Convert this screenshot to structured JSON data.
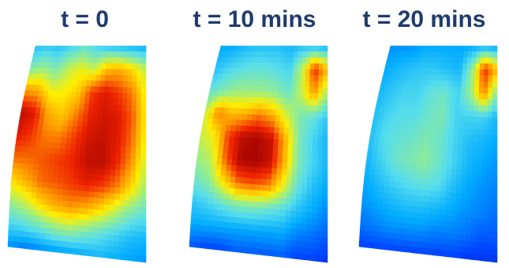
{
  "colors": {
    "title": "#1f3b6e",
    "colormap": [
      "#0000aa",
      "#0044ff",
      "#00aaff",
      "#55ddee",
      "#99ee88",
      "#ffee00",
      "#ff9900",
      "#ee2200",
      "#990000"
    ]
  },
  "panels": [
    {
      "title": "t = 0",
      "grid": [
        [
          0.3,
          0.32,
          0.3,
          0.35,
          0.4,
          0.35,
          0.3,
          0.28,
          0.26,
          0.25
        ],
        [
          0.45,
          0.5,
          0.45,
          0.55,
          0.6,
          0.55,
          0.7,
          0.72,
          0.65,
          0.55
        ],
        [
          0.75,
          0.72,
          0.6,
          0.62,
          0.68,
          0.85,
          0.9,
          0.85,
          0.78,
          0.6
        ],
        [
          0.95,
          0.9,
          0.72,
          0.68,
          0.78,
          0.88,
          0.92,
          0.9,
          0.82,
          0.62
        ],
        [
          0.9,
          0.85,
          0.78,
          0.78,
          0.85,
          0.92,
          0.94,
          0.9,
          0.8,
          0.6
        ],
        [
          0.8,
          0.8,
          0.82,
          0.85,
          0.88,
          0.94,
          0.95,
          0.88,
          0.75,
          0.55
        ],
        [
          0.65,
          0.72,
          0.8,
          0.82,
          0.85,
          0.88,
          0.85,
          0.78,
          0.65,
          0.5
        ],
        [
          0.5,
          0.55,
          0.65,
          0.72,
          0.75,
          0.72,
          0.65,
          0.55,
          0.45,
          0.4
        ],
        [
          0.35,
          0.38,
          0.42,
          0.48,
          0.5,
          0.45,
          0.4,
          0.35,
          0.3,
          0.28
        ],
        [
          0.22,
          0.18,
          0.2,
          0.22,
          0.24,
          0.26,
          0.28,
          0.26,
          0.24,
          0.22
        ]
      ]
    },
    {
      "title": "t = 10 mins",
      "grid": [
        [
          0.25,
          0.25,
          0.28,
          0.3,
          0.3,
          0.3,
          0.28,
          0.3,
          0.28,
          0.25
        ],
        [
          0.3,
          0.35,
          0.38,
          0.4,
          0.4,
          0.38,
          0.35,
          0.55,
          0.88,
          0.7
        ],
        [
          0.4,
          0.45,
          0.5,
          0.5,
          0.5,
          0.48,
          0.42,
          0.55,
          0.75,
          0.5
        ],
        [
          0.55,
          0.78,
          0.7,
          0.72,
          0.78,
          0.72,
          0.58,
          0.45,
          0.4,
          0.32
        ],
        [
          0.55,
          0.62,
          0.85,
          0.95,
          0.97,
          0.93,
          0.72,
          0.45,
          0.35,
          0.28
        ],
        [
          0.5,
          0.55,
          0.82,
          0.97,
          0.98,
          0.94,
          0.72,
          0.45,
          0.35,
          0.28
        ],
        [
          0.42,
          0.48,
          0.65,
          0.8,
          0.82,
          0.78,
          0.6,
          0.4,
          0.3,
          0.25
        ],
        [
          0.32,
          0.35,
          0.4,
          0.45,
          0.45,
          0.42,
          0.38,
          0.3,
          0.25,
          0.2
        ],
        [
          0.25,
          0.25,
          0.25,
          0.25,
          0.25,
          0.25,
          0.25,
          0.2,
          0.18,
          0.15
        ],
        [
          0.15,
          0.12,
          0.12,
          0.15,
          0.15,
          0.15,
          0.15,
          0.12,
          0.12,
          0.1
        ]
      ]
    },
    {
      "title": "t = 20 mins",
      "grid": [
        [
          0.22,
          0.22,
          0.22,
          0.25,
          0.25,
          0.25,
          0.25,
          0.25,
          0.25,
          0.22
        ],
        [
          0.25,
          0.28,
          0.3,
          0.32,
          0.32,
          0.3,
          0.28,
          0.48,
          0.88,
          0.7
        ],
        [
          0.28,
          0.32,
          0.35,
          0.35,
          0.4,
          0.42,
          0.35,
          0.5,
          0.78,
          0.45
        ],
        [
          0.3,
          0.35,
          0.38,
          0.38,
          0.42,
          0.45,
          0.35,
          0.35,
          0.35,
          0.28
        ],
        [
          0.3,
          0.38,
          0.4,
          0.42,
          0.45,
          0.42,
          0.35,
          0.3,
          0.28,
          0.25
        ],
        [
          0.28,
          0.35,
          0.42,
          0.45,
          0.48,
          0.42,
          0.35,
          0.28,
          0.25,
          0.22
        ],
        [
          0.25,
          0.3,
          0.35,
          0.38,
          0.4,
          0.38,
          0.3,
          0.25,
          0.22,
          0.2
        ],
        [
          0.22,
          0.25,
          0.28,
          0.3,
          0.3,
          0.28,
          0.25,
          0.22,
          0.2,
          0.18
        ],
        [
          0.18,
          0.2,
          0.22,
          0.22,
          0.22,
          0.2,
          0.2,
          0.18,
          0.15,
          0.15
        ],
        [
          0.12,
          0.12,
          0.12,
          0.12,
          0.12,
          0.12,
          0.12,
          0.1,
          0.1,
          0.1
        ]
      ]
    }
  ]
}
